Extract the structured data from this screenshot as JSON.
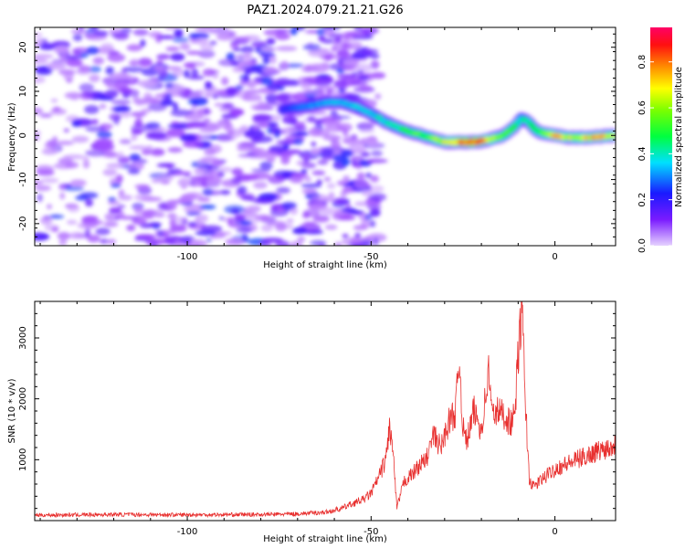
{
  "figure": {
    "title": "PAZ1.2024.079.21.21.G26"
  },
  "chart_data": [
    {
      "type": "heatmap",
      "name": "spectrogram",
      "xlabel": "Height of straight line (km)",
      "ylabel": "Frequency (Hz)",
      "xlim": [
        -141.5,
        16.5
      ],
      "ylim": [
        -25,
        24.5
      ],
      "xticks": [
        -100,
        -50,
        0
      ],
      "yticks": [
        -20,
        -10,
        0,
        10,
        20
      ],
      "colorbar": {
        "label": "Normalized spectral amplitude",
        "ticks": [
          "0.0",
          "0.2",
          "0.4",
          "0.6",
          "0.8"
        ],
        "range": [
          0,
          0.95
        ],
        "colormap": "gist_rainbow_r"
      },
      "noise_region_x": [
        -141.5,
        -48
      ],
      "signal_ridge": {
        "x": [
          -74,
          -68,
          -62,
          -58,
          -54,
          -50,
          -46,
          -42,
          -38,
          -34,
          -30,
          -26,
          -22,
          -18,
          -14,
          -11,
          -9,
          -7,
          -5,
          -3,
          0,
          4,
          8,
          12,
          16.5
        ],
        "y": [
          6,
          6.5,
          7.5,
          7.5,
          6.5,
          5,
          3,
          1.5,
          0.5,
          -0.5,
          -1.5,
          -1.5,
          -1.5,
          -1,
          0,
          2,
          4,
          3,
          1,
          0.5,
          0,
          -0.5,
          -0.5,
          -0.3,
          0
        ],
        "peak": [
          0.2,
          0.3,
          0.35,
          0.35,
          0.38,
          0.4,
          0.45,
          0.5,
          0.55,
          0.6,
          0.7,
          0.85,
          0.95,
          0.75,
          0.6,
          0.55,
          0.45,
          0.5,
          0.55,
          0.65,
          0.8,
          0.7,
          0.75,
          0.8,
          0.65
        ]
      }
    },
    {
      "type": "line",
      "name": "snr",
      "xlabel": "Height of straight line (km)",
      "ylabel": "SNR (10 * v/v)",
      "xlim": [
        -141.5,
        16.5
      ],
      "ylim": [
        0,
        3600
      ],
      "xticks": [
        -100,
        -50,
        0
      ],
      "yticks": [
        1000,
        2000,
        3000
      ],
      "color": "#e8302f",
      "series": [
        {
          "x": [
            -141.5,
            -120,
            -100,
            -80,
            -70,
            -62,
            -58,
            -55,
            -52,
            -50,
            -48,
            -46,
            -45,
            -44,
            -43,
            -41,
            -39,
            -37,
            -35,
            -33,
            -31,
            -29,
            -27,
            -26,
            -25,
            -24,
            -22,
            -20,
            -18,
            -17,
            -16,
            -14,
            -12,
            -11,
            -10,
            -9,
            -8,
            -7,
            -6,
            -5,
            -3,
            0,
            4,
            8,
            12,
            16.5
          ],
          "y": [
            90,
            100,
            95,
            100,
            110,
            140,
            200,
            280,
            350,
            450,
            700,
            1000,
            1550,
            1100,
            200,
            650,
            750,
            900,
            1000,
            1400,
            1200,
            1600,
            1800,
            2700,
            1500,
            1300,
            1800,
            1500,
            2450,
            1700,
            1800,
            1750,
            1600,
            1700,
            2700,
            3500,
            1900,
            700,
            550,
            600,
            700,
            850,
            950,
            1050,
            1150,
            1250
          ]
        }
      ]
    }
  ]
}
